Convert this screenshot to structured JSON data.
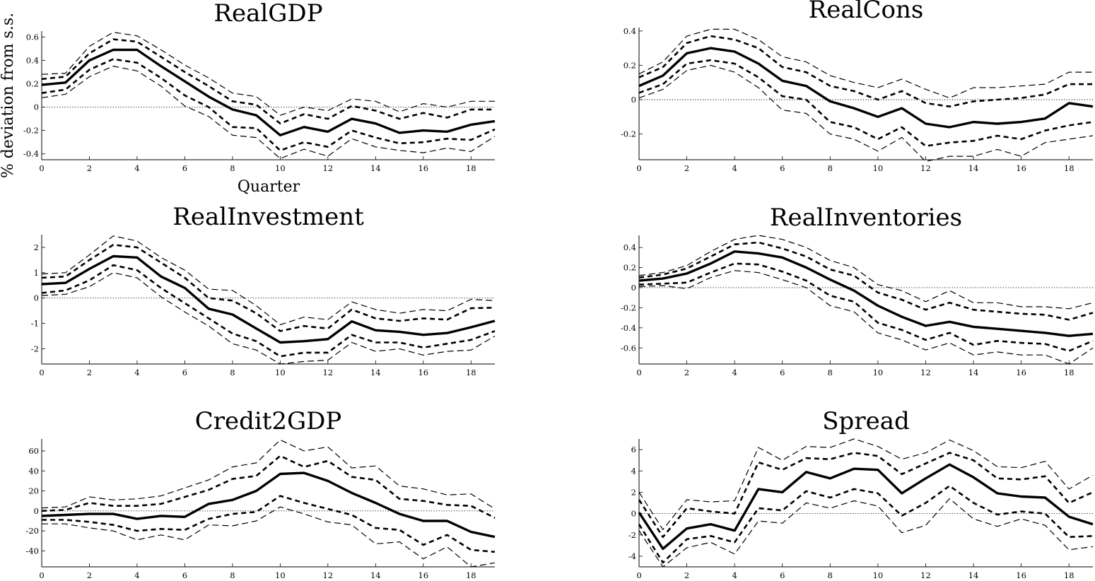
{
  "figure": {
    "ylabel": "% deviation from s.s.",
    "xlabel": "Quarter"
  },
  "chart_data": [
    {
      "type": "line",
      "title": "RealGDP",
      "x": [
        0,
        1,
        2,
        3,
        4,
        5,
        6,
        7,
        8,
        9,
        10,
        11,
        12,
        13,
        14,
        15,
        16,
        17,
        18,
        19
      ],
      "xlim": [
        0,
        19
      ],
      "ylim": [
        -0.45,
        0.65
      ],
      "xticks": [
        0,
        2,
        4,
        6,
        8,
        10,
        12,
        14,
        16,
        18
      ],
      "yticks": [
        -0.4,
        -0.2,
        0,
        0.2,
        0.4,
        0.6
      ],
      "ytick_labels": [
        "-0.4",
        "-0.2",
        "0",
        "0.2",
        "0.4",
        "0.6"
      ],
      "series": [
        {
          "style": "solid",
          "values": [
            0.19,
            0.21,
            0.4,
            0.49,
            0.49,
            0.35,
            0.22,
            0.09,
            -0.02,
            -0.07,
            -0.24,
            -0.17,
            -0.21,
            -0.1,
            -0.14,
            -0.22,
            -0.2,
            -0.21,
            -0.15,
            -0.12
          ]
        },
        {
          "style": "dash-bold",
          "values": [
            0.24,
            0.26,
            0.46,
            0.58,
            0.56,
            0.43,
            0.3,
            0.18,
            0.05,
            0.02,
            -0.14,
            -0.06,
            -0.1,
            0.01,
            -0.03,
            -0.1,
            -0.05,
            -0.09,
            -0.02,
            -0.02
          ]
        },
        {
          "style": "dash-bold",
          "values": [
            0.12,
            0.15,
            0.32,
            0.41,
            0.38,
            0.25,
            0.1,
            0.0,
            -0.17,
            -0.18,
            -0.37,
            -0.3,
            -0.34,
            -0.2,
            -0.26,
            -0.31,
            -0.3,
            -0.27,
            -0.28,
            -0.19
          ]
        },
        {
          "style": "dash-thin",
          "values": [
            0.28,
            0.29,
            0.52,
            0.64,
            0.61,
            0.49,
            0.36,
            0.25,
            0.12,
            0.09,
            -0.07,
            0.0,
            -0.03,
            0.07,
            0.05,
            -0.04,
            0.03,
            0.0,
            0.05,
            0.05
          ]
        },
        {
          "style": "dash-thin",
          "values": [
            0.08,
            0.11,
            0.26,
            0.35,
            0.31,
            0.18,
            0.01,
            -0.08,
            -0.24,
            -0.26,
            -0.44,
            -0.36,
            -0.42,
            -0.27,
            -0.34,
            -0.37,
            -0.39,
            -0.35,
            -0.38,
            -0.25
          ]
        }
      ]
    },
    {
      "type": "line",
      "title": "RealCons",
      "x": [
        0,
        1,
        2,
        3,
        4,
        5,
        6,
        7,
        8,
        9,
        10,
        11,
        12,
        13,
        14,
        15,
        16,
        17,
        18,
        19
      ],
      "xlim": [
        0,
        19
      ],
      "ylim": [
        -0.35,
        0.42
      ],
      "xticks": [
        0,
        2,
        4,
        6,
        8,
        10,
        12,
        14,
        16,
        18
      ],
      "yticks": [
        -0.2,
        0,
        0.2,
        0.4
      ],
      "ytick_labels": [
        "-0.2",
        "0",
        "0.2",
        "0.4"
      ],
      "series": [
        {
          "style": "solid",
          "values": [
            0.08,
            0.14,
            0.27,
            0.3,
            0.28,
            0.21,
            0.11,
            0.08,
            -0.01,
            -0.05,
            -0.1,
            -0.05,
            -0.14,
            -0.16,
            -0.13,
            -0.14,
            -0.13,
            -0.11,
            -0.02,
            -0.04
          ]
        },
        {
          "style": "dash-bold",
          "values": [
            0.13,
            0.19,
            0.33,
            0.37,
            0.35,
            0.3,
            0.19,
            0.16,
            0.08,
            0.05,
            0.0,
            0.05,
            -0.02,
            -0.04,
            -0.01,
            0.0,
            0.01,
            0.03,
            0.09,
            0.09
          ]
        },
        {
          "style": "dash-bold",
          "values": [
            0.04,
            0.09,
            0.21,
            0.23,
            0.21,
            0.13,
            0.02,
            0.0,
            -0.13,
            -0.16,
            -0.23,
            -0.16,
            -0.27,
            -0.25,
            -0.24,
            -0.21,
            -0.23,
            -0.18,
            -0.15,
            -0.13
          ]
        },
        {
          "style": "dash-thin",
          "values": [
            0.15,
            0.22,
            0.37,
            0.41,
            0.41,
            0.35,
            0.25,
            0.22,
            0.14,
            0.1,
            0.07,
            0.12,
            0.06,
            0.01,
            0.07,
            0.07,
            0.08,
            0.09,
            0.16,
            0.16
          ]
        },
        {
          "style": "dash-thin",
          "values": [
            0.01,
            0.06,
            0.17,
            0.2,
            0.16,
            0.07,
            -0.06,
            -0.08,
            -0.2,
            -0.23,
            -0.3,
            -0.22,
            -0.36,
            -0.33,
            -0.33,
            -0.29,
            -0.33,
            -0.25,
            -0.23,
            -0.21
          ]
        }
      ]
    },
    {
      "type": "line",
      "title": "RealInvestment",
      "x": [
        0,
        1,
        2,
        3,
        4,
        5,
        6,
        7,
        8,
        9,
        10,
        11,
        12,
        13,
        14,
        15,
        16,
        17,
        18,
        19
      ],
      "xlim": [
        0,
        19
      ],
      "ylim": [
        -2.6,
        2.5
      ],
      "xticks": [
        0,
        2,
        4,
        6,
        8,
        10,
        12,
        14,
        16,
        18
      ],
      "yticks": [
        -2,
        -1,
        0,
        1,
        2
      ],
      "ytick_labels": [
        "-2",
        "-1",
        "0",
        "1",
        "2"
      ],
      "series": [
        {
          "style": "solid",
          "values": [
            0.55,
            0.6,
            1.15,
            1.65,
            1.6,
            0.85,
            0.4,
            -0.42,
            -0.65,
            -1.2,
            -1.75,
            -1.7,
            -1.62,
            -0.92,
            -1.27,
            -1.33,
            -1.45,
            -1.38,
            -1.15,
            -0.9
          ]
        },
        {
          "style": "dash-bold",
          "values": [
            0.8,
            0.85,
            1.5,
            2.1,
            2.0,
            1.4,
            0.8,
            0.0,
            -0.1,
            -0.6,
            -1.3,
            -1.1,
            -1.2,
            -0.45,
            -0.8,
            -0.9,
            -0.8,
            -0.85,
            -0.4,
            -0.38
          ]
        },
        {
          "style": "dash-bold",
          "values": [
            0.2,
            0.3,
            0.7,
            1.3,
            1.1,
            0.4,
            -0.2,
            -0.8,
            -1.4,
            -1.7,
            -2.3,
            -2.15,
            -2.15,
            -1.45,
            -1.75,
            -1.75,
            -1.95,
            -1.8,
            -1.65,
            -1.3
          ]
        },
        {
          "style": "dash-thin",
          "values": [
            0.95,
            1.0,
            1.7,
            2.45,
            2.25,
            1.6,
            1.1,
            0.35,
            0.3,
            -0.3,
            -1.05,
            -0.75,
            -0.85,
            -0.15,
            -0.45,
            -0.6,
            -0.45,
            -0.5,
            -0.05,
            -0.1
          ]
        },
        {
          "style": "dash-thin",
          "values": [
            0.1,
            0.15,
            0.45,
            1.0,
            0.8,
            0.05,
            -0.55,
            -1.1,
            -1.8,
            -2.05,
            -2.6,
            -2.5,
            -2.45,
            -1.75,
            -2.1,
            -2.0,
            -2.25,
            -2.1,
            -2.05,
            -1.5
          ]
        }
      ]
    },
    {
      "type": "line",
      "title": "RealInventories",
      "x": [
        0,
        1,
        2,
        3,
        4,
        5,
        6,
        7,
        8,
        9,
        10,
        11,
        12,
        13,
        14,
        15,
        16,
        17,
        18,
        19
      ],
      "xlim": [
        0,
        19
      ],
      "ylim": [
        -0.76,
        0.52
      ],
      "xticks": [
        0,
        2,
        4,
        6,
        8,
        10,
        12,
        14,
        16,
        18
      ],
      "yticks": [
        -0.6,
        -0.4,
        -0.2,
        0,
        0.2,
        0.4
      ],
      "ytick_labels": [
        "-0.6",
        "-0.4",
        "-0.2",
        "0",
        "0.2",
        "0.4"
      ],
      "series": [
        {
          "style": "solid",
          "values": [
            0.07,
            0.09,
            0.14,
            0.24,
            0.36,
            0.34,
            0.3,
            0.2,
            0.08,
            -0.03,
            -0.18,
            -0.29,
            -0.38,
            -0.34,
            -0.39,
            -0.41,
            -0.43,
            -0.45,
            -0.48,
            -0.46
          ]
        },
        {
          "style": "dash-bold",
          "values": [
            0.1,
            0.13,
            0.19,
            0.31,
            0.43,
            0.45,
            0.39,
            0.31,
            0.18,
            0.12,
            -0.05,
            -0.12,
            -0.22,
            -0.15,
            -0.22,
            -0.24,
            -0.26,
            -0.27,
            -0.32,
            -0.25
          ]
        },
        {
          "style": "dash-bold",
          "values": [
            0.03,
            0.04,
            0.05,
            0.15,
            0.24,
            0.23,
            0.16,
            0.07,
            -0.08,
            -0.14,
            -0.35,
            -0.42,
            -0.52,
            -0.45,
            -0.57,
            -0.53,
            -0.55,
            -0.56,
            -0.63,
            -0.53
          ]
        },
        {
          "style": "dash-thin",
          "values": [
            0.12,
            0.15,
            0.22,
            0.36,
            0.48,
            0.52,
            0.48,
            0.4,
            0.27,
            0.2,
            0.03,
            -0.03,
            -0.14,
            -0.03,
            -0.15,
            -0.15,
            -0.19,
            -0.19,
            -0.21,
            -0.15
          ]
        },
        {
          "style": "dash-thin",
          "values": [
            0.01,
            0.02,
            -0.01,
            0.1,
            0.17,
            0.15,
            0.08,
            0.0,
            -0.18,
            -0.24,
            -0.45,
            -0.52,
            -0.62,
            -0.55,
            -0.67,
            -0.64,
            -0.67,
            -0.67,
            -0.76,
            -0.6
          ]
        }
      ]
    },
    {
      "type": "line",
      "title": "Credit2GDP",
      "x": [
        0,
        1,
        2,
        3,
        4,
        5,
        6,
        7,
        8,
        9,
        10,
        11,
        12,
        13,
        14,
        15,
        16,
        17,
        18,
        19
      ],
      "xlim": [
        0,
        19
      ],
      "ylim": [
        -56,
        72
      ],
      "xticks": [
        0,
        2,
        4,
        6,
        8,
        10,
        12,
        14,
        16,
        18
      ],
      "yticks": [
        -40,
        -20,
        0,
        20,
        40,
        60
      ],
      "ytick_labels": [
        "-40",
        "-20",
        "0",
        "20",
        "40",
        "60"
      ],
      "series": [
        {
          "style": "solid",
          "values": [
            -5,
            -4,
            -3,
            -3,
            -8,
            -5,
            -6,
            7,
            11,
            20,
            37,
            38,
            30,
            18,
            8,
            -3,
            -10,
            -10,
            -21,
            -26
          ]
        },
        {
          "style": "dash-bold",
          "values": [
            0,
            1,
            8,
            5,
            5,
            7,
            14,
            21,
            32,
            35,
            55,
            44,
            50,
            34,
            31,
            12,
            10,
            6,
            5,
            -7
          ]
        },
        {
          "style": "dash-bold",
          "values": [
            -9,
            -9,
            -11,
            -14,
            -20,
            -18,
            -19,
            -8,
            -3,
            -1,
            15,
            8,
            2,
            -4,
            -17,
            -19,
            -34,
            -24,
            -39,
            -41
          ]
        },
        {
          "style": "dash-thin",
          "values": [
            3,
            4,
            14,
            11,
            12,
            15,
            23,
            31,
            44,
            48,
            71,
            60,
            64,
            43,
            45,
            25,
            22,
            16,
            17,
            2
          ]
        },
        {
          "style": "dash-thin",
          "values": [
            -13,
            -13,
            -17,
            -20,
            -29,
            -24,
            -29,
            -14,
            -15,
            -10,
            4,
            -3,
            -11,
            -14,
            -33,
            -31,
            -48,
            -36,
            -56,
            -52
          ]
        }
      ]
    },
    {
      "type": "line",
      "title": "Spread",
      "x": [
        0,
        1,
        2,
        3,
        4,
        5,
        6,
        7,
        8,
        9,
        10,
        11,
        12,
        13,
        14,
        15,
        16,
        17,
        18,
        19
      ],
      "xlim": [
        0,
        19
      ],
      "ylim": [
        -5,
        7
      ],
      "xticks": [
        0,
        2,
        4,
        6,
        8,
        10,
        12,
        14,
        16,
        18
      ],
      "yticks": [
        -4,
        -2,
        0,
        2,
        4,
        6
      ],
      "ytick_labels": [
        "-4",
        "-2",
        "0",
        "2",
        "4",
        "6"
      ],
      "series": [
        {
          "style": "solid",
          "values": [
            0.1,
            -3.3,
            -1.4,
            -1.0,
            -1.6,
            2.3,
            2.0,
            3.9,
            3.3,
            4.2,
            4.1,
            1.9,
            3.3,
            4.6,
            3.4,
            1.9,
            1.6,
            1.5,
            -0.3,
            -1.0
          ]
        },
        {
          "style": "dash-bold",
          "values": [
            1.3,
            -2.2,
            0.5,
            0.2,
            0.0,
            4.8,
            4.1,
            5.2,
            5.1,
            5.7,
            5.4,
            3.7,
            4.7,
            5.7,
            5.0,
            3.3,
            3.2,
            3.5,
            1.0,
            2.0
          ]
        },
        {
          "style": "dash-bold",
          "values": [
            -1.0,
            -4.6,
            -2.4,
            -2.1,
            -2.7,
            0.5,
            0.3,
            2.1,
            1.5,
            2.3,
            1.9,
            -0.2,
            1.0,
            2.6,
            1.0,
            -0.1,
            0.2,
            0.0,
            -2.2,
            -2.1
          ]
        },
        {
          "style": "dash-thin",
          "values": [
            2.0,
            -1.5,
            1.3,
            1.1,
            1.2,
            6.2,
            5.0,
            6.3,
            6.2,
            7.0,
            6.3,
            5.1,
            5.7,
            6.9,
            5.9,
            4.4,
            4.3,
            4.9,
            2.3,
            3.6
          ]
        },
        {
          "style": "dash-thin",
          "values": [
            -1.6,
            -5.0,
            -3.2,
            -2.7,
            -3.8,
            -0.7,
            -0.9,
            1.0,
            0.5,
            1.2,
            0.7,
            -1.8,
            -1.1,
            1.4,
            -0.5,
            -1.2,
            -0.5,
            -1.1,
            -3.4,
            -3.1
          ]
        }
      ]
    }
  ]
}
